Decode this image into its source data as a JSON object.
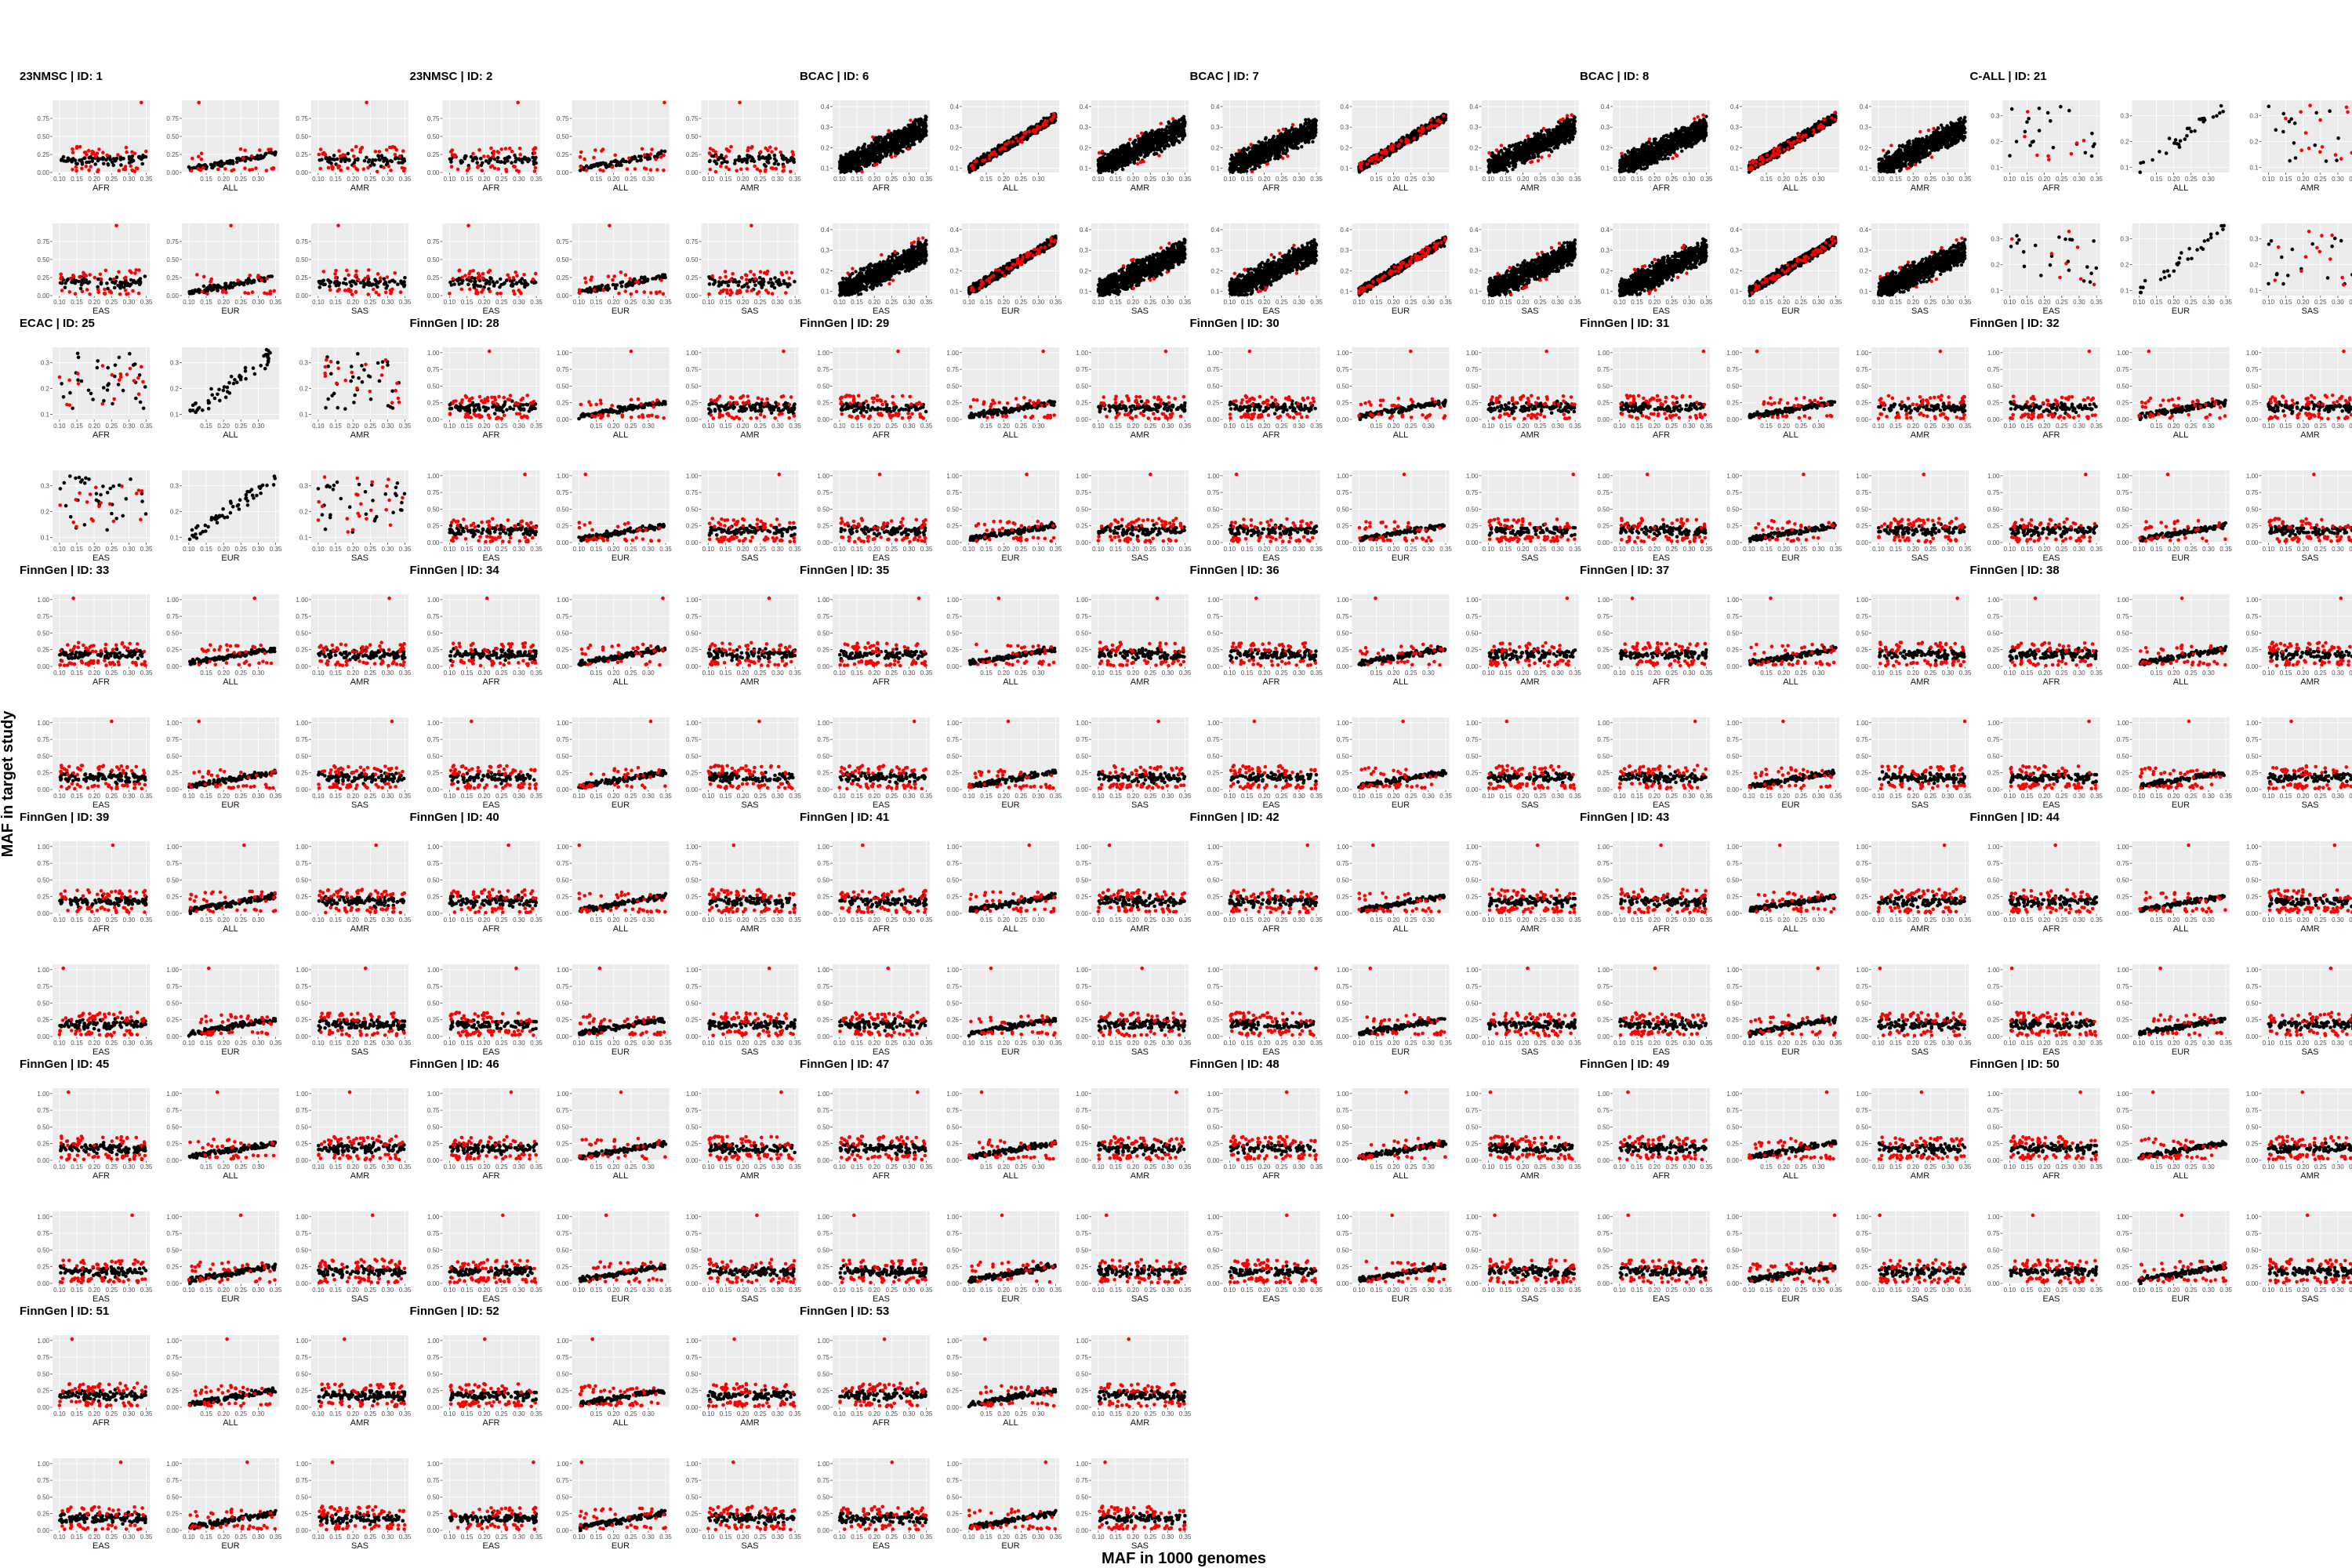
{
  "figure": {
    "xlabel": "MAF in 1000 genomes",
    "ylabel": "MAF in target study"
  },
  "colors": {
    "panel_background": "#ebebeb",
    "grid_major": "#ffffff",
    "match_point": "#000000",
    "outlier_point": "#ff0000"
  },
  "chart_data": {
    "type": "scatter",
    "layout_note": "small multiples: each study block has 6 panels, top row AFR/ALL/AMR, bottom row EAS/EUR/SAS",
    "populations": [
      "AFR",
      "ALL",
      "AMR",
      "EAS",
      "EUR",
      "SAS"
    ],
    "panel_xlim": [
      0.08,
      0.36
    ],
    "x_ticks": {
      "AFR": [
        "0.10",
        "0.15",
        "0.20",
        "0.25",
        "0.30",
        "0.35"
      ],
      "ALL": [
        "0.15",
        "0.20",
        "0.25",
        "0.30"
      ],
      "AMR": [
        "0.10",
        "0.15",
        "0.20",
        "0.25",
        "0.30",
        "0.35"
      ],
      "EAS": [
        "0.10",
        "0.15",
        "0.20",
        "0.25",
        "0.30",
        "0.35"
      ],
      "EUR": [
        "0.10",
        "0.15",
        "0.20",
        "0.25",
        "0.30",
        "0.35"
      ],
      "SAS": [
        "0.10",
        "0.15",
        "0.20",
        "0.25",
        "0.30",
        "0.35"
      ]
    },
    "ylim_profiles": {
      "A": {
        "ylim": [
          0,
          1.0
        ],
        "ticks": [
          "0.00",
          "0.25",
          "0.50",
          "0.75"
        ]
      },
      "B": {
        "ylim": [
          0.08,
          0.43
        ],
        "ticks": [
          "0.1",
          "0.2",
          "0.3",
          "0.4"
        ]
      },
      "C": {
        "ylim": [
          0.08,
          0.36
        ],
        "ticks": [
          "0.1",
          "0.2",
          "0.3"
        ]
      },
      "F": {
        "ylim": [
          0,
          1.08
        ],
        "ticks": [
          "0.00",
          "0.25",
          "0.50",
          "0.75",
          "1.00"
        ]
      }
    },
    "studies": [
      {
        "title": "23NMSC | ID: 1",
        "profile": "A",
        "pattern": "nmsc",
        "n": 120
      },
      {
        "title": "23NMSC | ID: 2",
        "profile": "A",
        "pattern": "nmsc",
        "n": 120
      },
      {
        "title": "BCAC | ID: 6",
        "profile": "B",
        "pattern": "dense",
        "n": 900
      },
      {
        "title": "BCAC | ID: 7",
        "profile": "B",
        "pattern": "dense",
        "n": 900
      },
      {
        "title": "BCAC | ID: 8",
        "profile": "B",
        "pattern": "dense",
        "n": 900
      },
      {
        "title": "C-ALL | ID: 21",
        "profile": "C",
        "pattern": "sparse",
        "n": 30
      },
      {
        "title": "ECAC | ID: 25",
        "profile": "C",
        "pattern": "sparse",
        "n": 55
      },
      {
        "title": "FinnGen | ID: 28",
        "profile": "F",
        "pattern": "finngen",
        "n": 160
      },
      {
        "title": "FinnGen | ID: 29",
        "profile": "F",
        "pattern": "finngen",
        "n": 160
      },
      {
        "title": "FinnGen | ID: 30",
        "profile": "F",
        "pattern": "finngen",
        "n": 160
      },
      {
        "title": "FinnGen | ID: 31",
        "profile": "F",
        "pattern": "finngen",
        "n": 160
      },
      {
        "title": "FinnGen | ID: 32",
        "profile": "F",
        "pattern": "finngen",
        "n": 160
      },
      {
        "title": "FinnGen | ID: 33",
        "profile": "F",
        "pattern": "finngen",
        "n": 160
      },
      {
        "title": "FinnGen | ID: 34",
        "profile": "F",
        "pattern": "finngen",
        "n": 160
      },
      {
        "title": "FinnGen | ID: 35",
        "profile": "F",
        "pattern": "finngen",
        "n": 160
      },
      {
        "title": "FinnGen | ID: 36",
        "profile": "F",
        "pattern": "finngen",
        "n": 160
      },
      {
        "title": "FinnGen | ID: 37",
        "profile": "F",
        "pattern": "finngen",
        "n": 160
      },
      {
        "title": "FinnGen | ID: 38",
        "profile": "F",
        "pattern": "finngen",
        "n": 160
      },
      {
        "title": "FinnGen | ID: 39",
        "profile": "F",
        "pattern": "finngen",
        "n": 160
      },
      {
        "title": "FinnGen | ID: 40",
        "profile": "F",
        "pattern": "finngen",
        "n": 160
      },
      {
        "title": "FinnGen | ID: 41",
        "profile": "F",
        "pattern": "finngen",
        "n": 160
      },
      {
        "title": "FinnGen | ID: 42",
        "profile": "F",
        "pattern": "finngen",
        "n": 160
      },
      {
        "title": "FinnGen | ID: 43",
        "profile": "F",
        "pattern": "finngen",
        "n": 160
      },
      {
        "title": "FinnGen | ID: 44",
        "profile": "F",
        "pattern": "finngen",
        "n": 160
      },
      {
        "title": "FinnGen | ID: 45",
        "profile": "F",
        "pattern": "finngen",
        "n": 160
      },
      {
        "title": "FinnGen | ID: 46",
        "profile": "F",
        "pattern": "finngen",
        "n": 160
      },
      {
        "title": "FinnGen | ID: 47",
        "profile": "F",
        "pattern": "finngen",
        "n": 160
      },
      {
        "title": "FinnGen | ID: 48",
        "profile": "F",
        "pattern": "finngen",
        "n": 160
      },
      {
        "title": "FinnGen | ID: 49",
        "profile": "F",
        "pattern": "finngen",
        "n": 160
      },
      {
        "title": "FinnGen | ID: 50",
        "profile": "F",
        "pattern": "finngen",
        "n": 160
      },
      {
        "title": "FinnGen | ID: 51",
        "profile": "F",
        "pattern": "finngen",
        "n": 160
      },
      {
        "title": "FinnGen | ID: 52",
        "profile": "F",
        "pattern": "finngen",
        "n": 160
      },
      {
        "title": "FinnGen | ID: 53",
        "profile": "F",
        "pattern": "finngen",
        "n": 160
      }
    ]
  }
}
